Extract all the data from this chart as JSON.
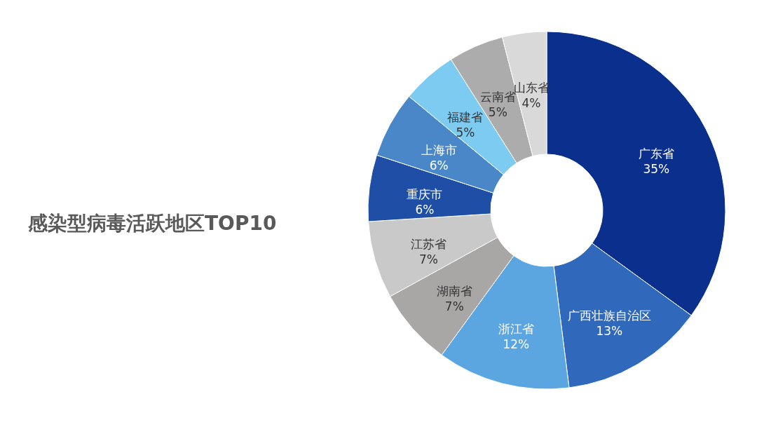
{
  "chart_data": {
    "type": "donut",
    "title": "感染型病毒活跃地区TOP10",
    "categories": [
      "广东省",
      "广西壮族自治区",
      "浙江省",
      "湖南省",
      "江苏省",
      "重庆市",
      "上海市",
      "福建省",
      "云南省",
      "山东省"
    ],
    "values": [
      35,
      13,
      12,
      7,
      7,
      6,
      6,
      5,
      5,
      4
    ],
    "value_labels": [
      "35%",
      "13%",
      "12%",
      "7%",
      "7%",
      "6%",
      "6%",
      "5%",
      "5%",
      "4%"
    ],
    "colors": [
      "#0b2f8c",
      "#3068bb",
      "#5ba6e0",
      "#a9a6a6",
      "#c9c9c9",
      "#1f4ea6",
      "#4a87c9",
      "#7ecbf2",
      "#acacac",
      "#d9d9d9"
    ],
    "legend": false
  }
}
